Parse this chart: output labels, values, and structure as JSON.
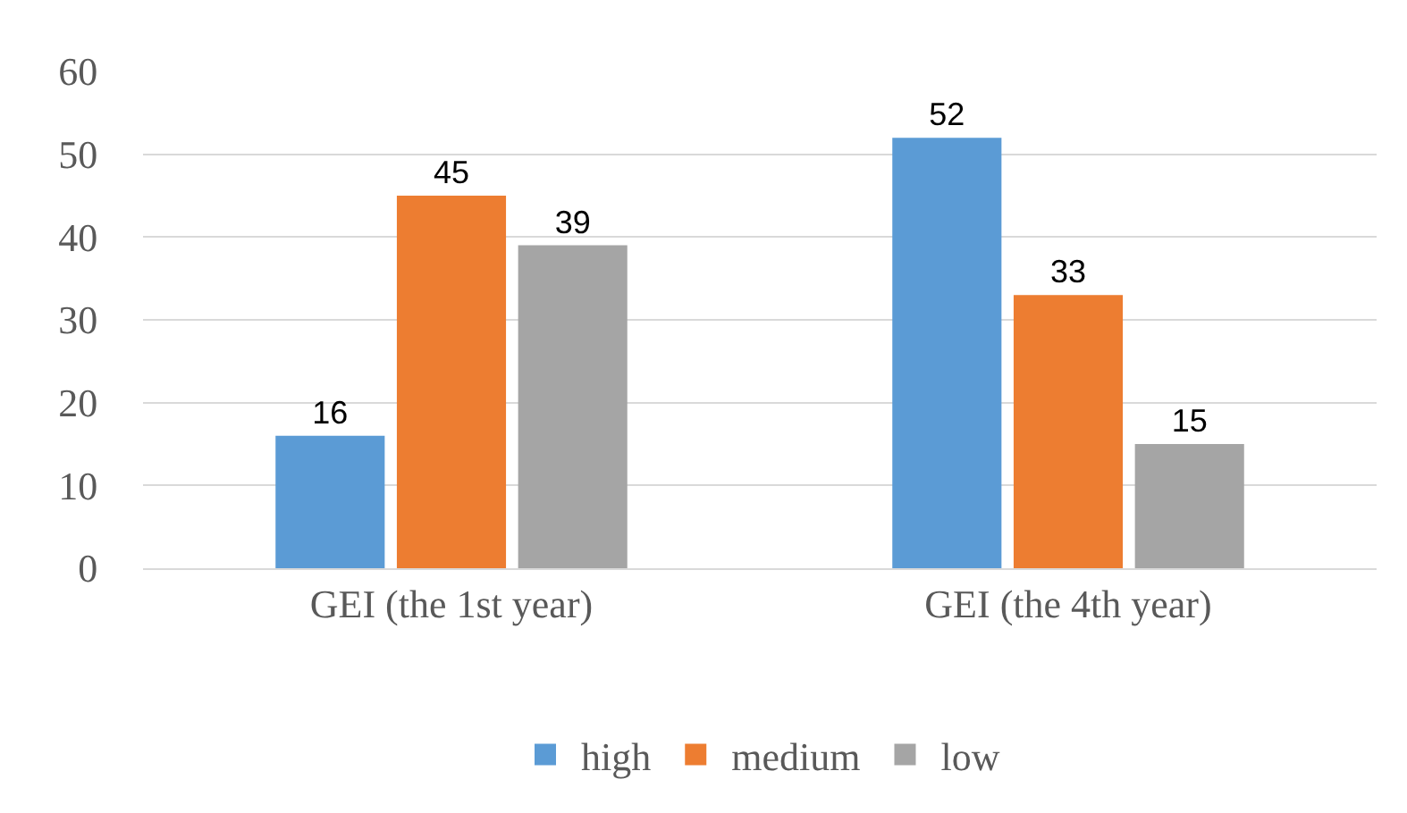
{
  "chart_data": {
    "type": "bar",
    "categories": [
      "GEI (the 1st year)",
      "GEI (the 4th year)"
    ],
    "series": [
      {
        "name": "high",
        "color": "#5b9bd5",
        "values": [
          16,
          52
        ]
      },
      {
        "name": "medium",
        "color": "#ed7d31",
        "values": [
          45,
          33
        ]
      },
      {
        "name": "low",
        "color": "#a5a5a5",
        "values": [
          39,
          15
        ]
      }
    ],
    "ylim": [
      0,
      60
    ],
    "yticks": [
      0,
      10,
      20,
      30,
      40,
      50,
      60
    ],
    "grid": "y",
    "legend": "bottom",
    "data_labels": true
  }
}
